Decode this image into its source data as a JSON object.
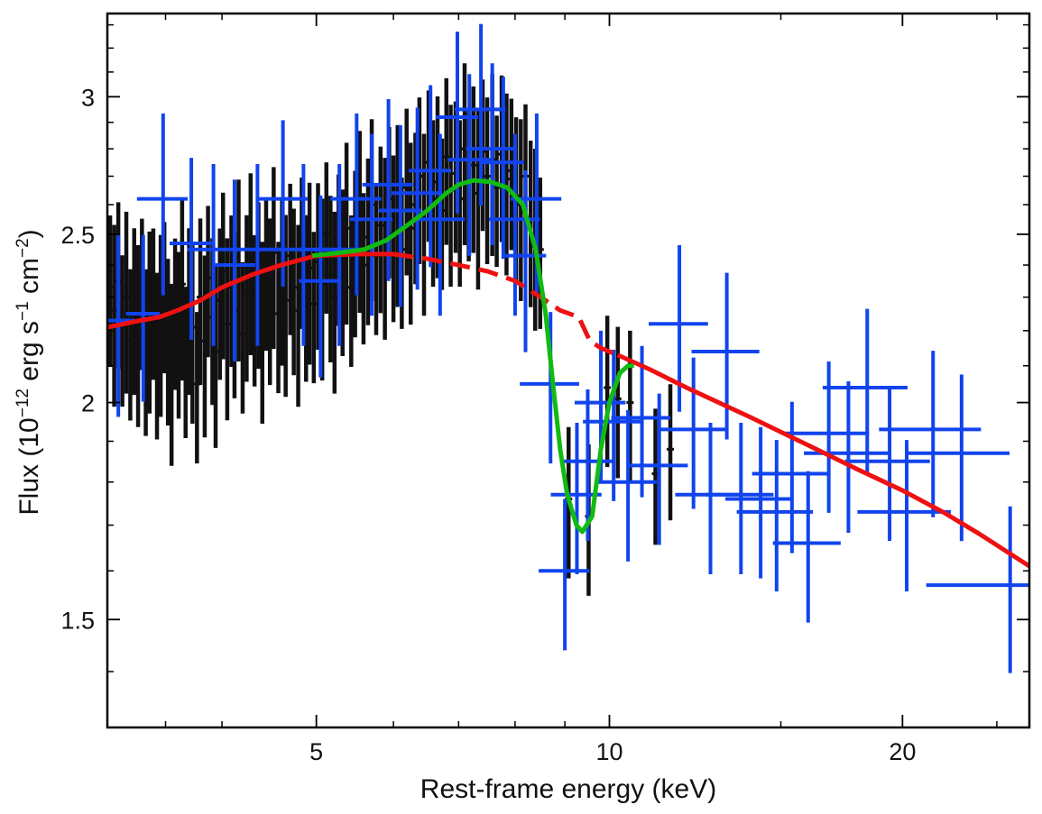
{
  "chart_data": {
    "type": "scatter",
    "title": "",
    "xlabel": "Rest-frame energy (keV)",
    "ylabel_parts": [
      "Flux (10",
      "−12",
      " erg s",
      "−1",
      " cm",
      "−2",
      ")"
    ],
    "xscale": "log",
    "yscale": "log",
    "xlim": [
      3.05,
      27
    ],
    "ylim": [
      1.3,
      3.35
    ],
    "xticks": [
      {
        "value": 5,
        "label": "5"
      },
      {
        "value": 10,
        "label": "10"
      },
      {
        "value": 20,
        "label": "20"
      }
    ],
    "yticks": [
      {
        "value": 1.5,
        "label": "1.5"
      },
      {
        "value": 2,
        "label": "2"
      },
      {
        "value": 2.5,
        "label": "2.5"
      },
      {
        "value": 3,
        "label": "3"
      }
    ],
    "colors": {
      "black": "#111111",
      "blue": "#1144ee",
      "red": "#ee1111",
      "green": "#11bb11",
      "frame": "#000000"
    },
    "series": [
      {
        "name": "data-black",
        "kind": "errorbars",
        "color": "#111111",
        "points": [
          [
            3.07,
            2.33,
            0.1
          ],
          [
            3.1,
            2.26,
            0.12
          ],
          [
            3.13,
            2.35,
            0.11
          ],
          [
            3.16,
            2.21,
            0.1
          ],
          [
            3.19,
            2.3,
            0.12
          ],
          [
            3.22,
            2.17,
            0.1
          ],
          [
            3.25,
            2.27,
            0.11
          ],
          [
            3.28,
            2.2,
            0.12
          ],
          [
            3.31,
            2.32,
            0.1
          ],
          [
            3.34,
            2.15,
            0.11
          ],
          [
            3.37,
            2.24,
            0.12
          ],
          [
            3.4,
            2.29,
            0.1
          ],
          [
            3.43,
            2.14,
            0.11
          ],
          [
            3.46,
            2.23,
            0.12
          ],
          [
            3.49,
            2.31,
            0.1
          ],
          [
            3.52,
            2.18,
            0.11
          ],
          [
            3.55,
            2.09,
            0.12
          ],
          [
            3.58,
            2.26,
            0.1
          ],
          [
            3.61,
            2.2,
            0.11
          ],
          [
            3.64,
            2.34,
            0.12
          ],
          [
            3.67,
            2.12,
            0.1
          ],
          [
            3.7,
            2.27,
            0.11
          ],
          [
            3.73,
            2.21,
            0.12
          ],
          [
            3.77,
            2.05,
            0.1
          ],
          [
            3.8,
            2.3,
            0.11
          ],
          [
            3.84,
            2.17,
            0.12
          ],
          [
            3.87,
            2.36,
            0.1
          ],
          [
            3.91,
            2.24,
            0.11
          ],
          [
            3.94,
            2.14,
            0.12
          ],
          [
            3.98,
            2.29,
            0.1
          ],
          [
            4.01,
            2.38,
            0.11
          ],
          [
            4.05,
            2.22,
            0.12
          ],
          [
            4.09,
            2.33,
            0.1
          ],
          [
            4.12,
            2.26,
            0.11
          ],
          [
            4.16,
            2.4,
            0.12
          ],
          [
            4.2,
            2.19,
            0.1
          ],
          [
            4.24,
            2.31,
            0.11
          ],
          [
            4.28,
            2.42,
            0.12
          ],
          [
            4.32,
            2.27,
            0.1
          ],
          [
            4.36,
            2.35,
            0.11
          ],
          [
            4.4,
            2.21,
            0.12
          ],
          [
            4.44,
            2.38,
            0.1
          ],
          [
            4.48,
            2.3,
            0.11
          ],
          [
            4.52,
            2.44,
            0.12
          ],
          [
            4.57,
            2.25,
            0.1
          ],
          [
            4.61,
            2.36,
            0.11
          ],
          [
            4.65,
            2.29,
            0.12
          ],
          [
            4.7,
            2.43,
            0.1
          ],
          [
            4.74,
            2.33,
            0.11
          ],
          [
            4.79,
            2.26,
            0.12
          ],
          [
            4.83,
            2.45,
            0.1
          ],
          [
            4.88,
            2.31,
            0.11
          ],
          [
            4.92,
            2.39,
            0.12
          ],
          [
            4.97,
            2.28,
            0.1
          ],
          [
            5.02,
            2.41,
            0.11
          ],
          [
            5.07,
            2.34,
            0.12
          ],
          [
            5.12,
            2.5,
            0.1
          ],
          [
            5.17,
            2.37,
            0.11
          ],
          [
            5.22,
            2.3,
            0.12
          ],
          [
            5.27,
            2.46,
            0.1
          ],
          [
            5.32,
            2.39,
            0.11
          ],
          [
            5.37,
            2.52,
            0.12
          ],
          [
            5.43,
            2.33,
            0.1
          ],
          [
            5.48,
            2.45,
            0.11
          ],
          [
            5.54,
            2.56,
            0.12
          ],
          [
            5.59,
            2.4,
            0.1
          ],
          [
            5.65,
            2.49,
            0.11
          ],
          [
            5.7,
            2.6,
            0.12
          ],
          [
            5.76,
            2.43,
            0.1
          ],
          [
            5.82,
            2.53,
            0.11
          ],
          [
            5.88,
            2.47,
            0.12
          ],
          [
            5.94,
            2.62,
            0.1
          ],
          [
            6.0,
            2.5,
            0.11
          ],
          [
            6.06,
            2.58,
            0.12
          ],
          [
            6.12,
            2.45,
            0.1
          ],
          [
            6.19,
            2.66,
            0.11
          ],
          [
            6.25,
            2.52,
            0.12
          ],
          [
            6.32,
            2.6,
            0.1
          ],
          [
            6.38,
            2.7,
            0.11
          ],
          [
            6.45,
            2.55,
            0.12
          ],
          [
            6.52,
            2.75,
            0.1
          ],
          [
            6.59,
            2.62,
            0.11
          ],
          [
            6.66,
            2.68,
            0.12
          ],
          [
            6.73,
            2.58,
            0.1
          ],
          [
            6.8,
            2.77,
            0.11
          ],
          [
            6.87,
            2.65,
            0.12
          ],
          [
            6.95,
            2.71,
            0.1
          ],
          [
            7.02,
            2.62,
            0.11
          ],
          [
            7.1,
            2.8,
            0.12
          ],
          [
            7.17,
            2.68,
            0.1
          ],
          [
            7.25,
            2.74,
            0.11
          ],
          [
            7.33,
            2.64,
            0.12
          ],
          [
            7.41,
            2.79,
            0.1
          ],
          [
            7.49,
            2.7,
            0.11
          ],
          [
            7.58,
            2.76,
            0.12
          ],
          [
            7.66,
            2.66,
            0.1
          ],
          [
            7.75,
            2.78,
            0.11
          ],
          [
            7.84,
            2.69,
            0.12
          ],
          [
            7.93,
            2.72,
            0.1
          ],
          [
            8.02,
            2.63,
            0.11
          ],
          [
            8.11,
            2.6,
            0.12
          ],
          [
            8.2,
            2.7,
            0.1
          ],
          [
            8.3,
            2.55,
            0.11
          ],
          [
            8.39,
            2.5,
            0.12
          ],
          [
            8.49,
            2.45,
            0.1
          ],
          [
            9.08,
            1.76,
            0.1
          ],
          [
            9.52,
            1.72,
            0.1
          ],
          [
            9.95,
            2.04,
            0.1
          ],
          [
            10.2,
            2.01,
            0.1
          ],
          [
            10.5,
            2.0,
            0.1
          ],
          [
            11.15,
            1.82,
            0.09
          ],
          [
            11.55,
            1.88,
            0.09
          ]
        ]
      },
      {
        "name": "data-blue",
        "kind": "errorbars",
        "color": "#1144ee",
        "points": [
          [
            3.13,
            2.23,
            0.12,
            0.04
          ],
          [
            3.32,
            2.25,
            0.11,
            0.04
          ],
          [
            3.48,
            2.62,
            0.12,
            0.06
          ],
          [
            3.72,
            2.47,
            0.12,
            0.05
          ],
          [
            3.92,
            2.45,
            0.12,
            0.06
          ],
          [
            4.12,
            2.4,
            0.12,
            0.05
          ],
          [
            4.35,
            2.45,
            0.12,
            0.05
          ],
          [
            4.62,
            2.62,
            0.11,
            0.06
          ],
          [
            4.85,
            2.45,
            0.12,
            0.06
          ],
          [
            5.05,
            2.35,
            0.12,
            0.05
          ],
          [
            5.28,
            2.45,
            0.12,
            0.06
          ],
          [
            5.5,
            2.62,
            0.12,
            0.06
          ],
          [
            5.7,
            2.55,
            0.12,
            0.05
          ],
          [
            5.93,
            2.67,
            0.12,
            0.06
          ],
          [
            6.1,
            2.58,
            0.12,
            0.05
          ],
          [
            6.35,
            2.64,
            0.12,
            0.06
          ],
          [
            6.55,
            2.72,
            0.12,
            0.05
          ],
          [
            6.7,
            2.55,
            0.12,
            0.06
          ],
          [
            6.98,
            2.92,
            0.12,
            0.05
          ],
          [
            7.18,
            2.76,
            0.12,
            0.05
          ],
          [
            7.38,
            2.95,
            0.12,
            0.06
          ],
          [
            7.58,
            2.8,
            0.12,
            0.06
          ],
          [
            7.78,
            2.75,
            0.12,
            0.05
          ],
          [
            8.0,
            2.55,
            0.12,
            0.06
          ],
          [
            8.2,
            2.43,
            0.12,
            0.05
          ],
          [
            8.42,
            2.62,
            0.12,
            0.06
          ],
          [
            8.7,
            2.05,
            0.1,
            0.07
          ],
          [
            9.0,
            1.6,
            0.1,
            0.06
          ],
          [
            9.26,
            1.77,
            0.1,
            0.06
          ],
          [
            9.5,
            1.85,
            0.1,
            0.06
          ],
          [
            9.8,
            2.0,
            0.1,
            0.06
          ],
          [
            10.1,
            1.95,
            0.1,
            0.07
          ],
          [
            10.45,
            1.8,
            0.1,
            0.07
          ],
          [
            10.8,
            1.96,
            0.1,
            0.07
          ],
          [
            11.25,
            1.84,
            0.1,
            0.07
          ],
          [
            11.8,
            2.22,
            0.11,
            0.07
          ],
          [
            12.2,
            1.93,
            0.1,
            0.08
          ],
          [
            12.7,
            1.77,
            0.1,
            0.08
          ],
          [
            13.2,
            2.14,
            0.11,
            0.08
          ],
          [
            13.65,
            1.77,
            0.1,
            0.08
          ],
          [
            14.3,
            1.76,
            0.1,
            0.08
          ],
          [
            14.85,
            1.73,
            0.1,
            0.09
          ],
          [
            15.4,
            1.82,
            0.1,
            0.09
          ],
          [
            16.0,
            1.66,
            0.1,
            0.08
          ],
          [
            16.8,
            1.92,
            0.1,
            0.1
          ],
          [
            17.6,
            1.87,
            0.1,
            0.1
          ],
          [
            18.4,
            2.04,
            0.11,
            0.1
          ],
          [
            19.4,
            1.85,
            0.1,
            0.1
          ],
          [
            20.2,
            1.73,
            0.1,
            0.11
          ],
          [
            21.5,
            1.93,
            0.11,
            0.12
          ],
          [
            23.0,
            1.87,
            0.11,
            0.12
          ],
          [
            25.8,
            1.57,
            0.11,
            0.18
          ]
        ]
      },
      {
        "name": "continuum",
        "kind": "line",
        "color": "#ee1111",
        "points": [
          [
            3.05,
            2.21
          ],
          [
            3.3,
            2.23
          ],
          [
            3.45,
            2.24
          ],
          [
            3.6,
            2.26
          ],
          [
            3.8,
            2.29
          ],
          [
            4.0,
            2.33
          ],
          [
            4.3,
            2.37
          ],
          [
            4.6,
            2.4
          ],
          [
            5.0,
            2.43
          ],
          [
            5.5,
            2.435
          ],
          [
            6.0,
            2.435
          ],
          [
            6.5,
            2.42
          ],
          [
            7.0,
            2.4
          ],
          [
            7.5,
            2.38
          ],
          [
            8.0,
            2.35
          ],
          [
            8.5,
            2.3
          ],
          [
            8.9,
            2.26
          ],
          [
            9.3,
            2.24
          ],
          [
            9.55,
            2.17
          ],
          [
            9.8,
            2.15
          ],
          [
            10.2,
            2.13
          ],
          [
            11.0,
            2.09
          ],
          [
            12.0,
            2.04
          ],
          [
            14.0,
            1.96
          ],
          [
            16.0,
            1.89
          ],
          [
            18.0,
            1.83
          ],
          [
            20.0,
            1.78
          ],
          [
            22.0,
            1.73
          ],
          [
            24.0,
            1.68
          ],
          [
            27.0,
            1.61
          ]
        ]
      },
      {
        "name": "absorption-model",
        "kind": "line",
        "color": "#11bb11",
        "points": [
          [
            4.95,
            2.43
          ],
          [
            5.3,
            2.44
          ],
          [
            5.6,
            2.45
          ],
          [
            5.9,
            2.48
          ],
          [
            6.2,
            2.53
          ],
          [
            6.5,
            2.58
          ],
          [
            6.8,
            2.64
          ],
          [
            7.0,
            2.67
          ],
          [
            7.25,
            2.685
          ],
          [
            7.55,
            2.68
          ],
          [
            7.85,
            2.66
          ],
          [
            8.15,
            2.6
          ],
          [
            8.4,
            2.45
          ],
          [
            8.6,
            2.25
          ],
          [
            8.75,
            2.05
          ],
          [
            8.9,
            1.88
          ],
          [
            9.05,
            1.77
          ],
          [
            9.25,
            1.7
          ],
          [
            9.38,
            1.685
          ],
          [
            9.6,
            1.72
          ],
          [
            9.8,
            1.88
          ],
          [
            10.0,
            2.0
          ],
          [
            10.25,
            2.08
          ],
          [
            10.45,
            2.1
          ],
          [
            10.6,
            2.1
          ]
        ]
      }
    ]
  }
}
